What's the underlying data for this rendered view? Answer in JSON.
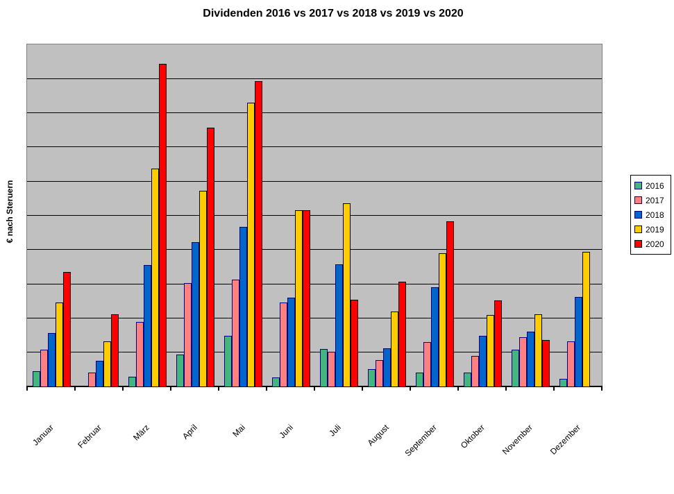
{
  "chart_data": {
    "type": "bar",
    "title": "Dividenden 2016 vs 2017 vs 2018 vs 2019 vs 2020",
    "ylabel": "€ nach Steruern",
    "xlabel": "",
    "categories": [
      "Januar",
      "Februar",
      "März",
      "April",
      "Mai",
      "Juni",
      "Juli",
      "August",
      "September",
      "Oktober",
      "November",
      "Dezember"
    ],
    "series": [
      {
        "name": "2016",
        "color": "#44B57D",
        "border_color": "#000080",
        "values": [
          0.45,
          0,
          0.28,
          0.93,
          1.48,
          0.26,
          1.1,
          0.51,
          0.41,
          0.41,
          1.08,
          0.22
        ]
      },
      {
        "name": "2017",
        "color": "#FF8080",
        "border_color": "#000080",
        "values": [
          1.07,
          0.41,
          1.89,
          3.02,
          3.12,
          2.45,
          1.01,
          0.77,
          1.3,
          0.89,
          1.44,
          1.32
        ]
      },
      {
        "name": "2018",
        "color": "#0066CC",
        "border_color": "#000080",
        "values": [
          1.56,
          0.75,
          3.55,
          4.22,
          4.67,
          2.6,
          3.57,
          1.12,
          2.9,
          1.48,
          1.6,
          2.62
        ]
      },
      {
        "name": "2019",
        "color": "#FFCC00",
        "border_color": "#000000",
        "values": [
          2.45,
          1.32,
          6.37,
          5.72,
          8.3,
          5.15,
          5.35,
          2.19,
          3.89,
          2.09,
          2.11,
          3.93
        ]
      },
      {
        "name": "2020",
        "color": "#FF0000",
        "border_color": "#000000",
        "values": [
          3.35,
          2.11,
          9.43,
          7.57,
          8.92,
          5.15,
          2.54,
          3.06,
          4.83,
          2.52,
          1.36,
          0
        ]
      }
    ],
    "ylim": [
      0,
      10
    ],
    "y_gridline_step": 1,
    "y_axis_numeric_labels_visible": false,
    "grid": true,
    "legend_position": "right",
    "plot_bg_color": "#C0C0C0",
    "gridline_color": "#000000",
    "plot_border_color": "#808080"
  }
}
